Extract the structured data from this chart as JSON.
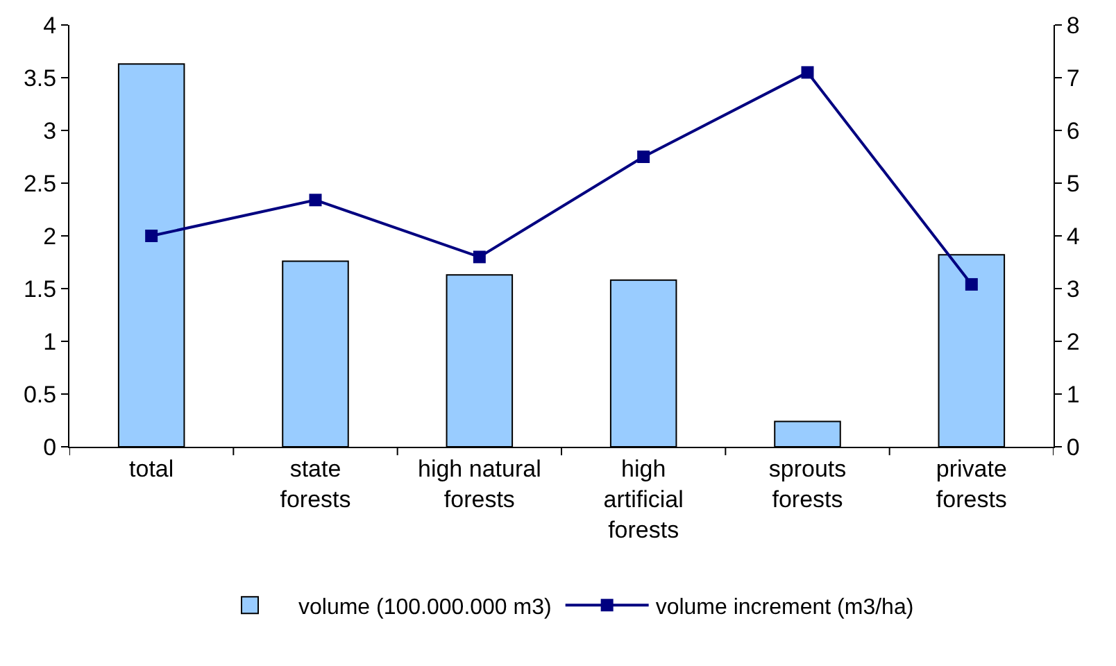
{
  "chart_data": {
    "type": "bar",
    "categories": [
      "total",
      "state\nforests",
      "high natural\nforests",
      "high\nartificial\nforests",
      "sprouts\nforests",
      "private\nforests"
    ],
    "series": [
      {
        "name": "volume (100.000.000 m3)",
        "color": "#99ccff",
        "values": [
          3.63,
          1.76,
          1.63,
          1.58,
          0.24,
          1.82
        ]
      },
      {
        "name": "volume increment (m3/ha)",
        "type": "line",
        "axis": "y2",
        "color": "#000080",
        "marker": "square",
        "line_style": "solid",
        "values": [
          4.0,
          4.68,
          3.6,
          5.5,
          7.1,
          3.08
        ]
      }
    ],
    "ylim": [
      0,
      4
    ],
    "yticks": [
      0,
      0.5,
      1,
      1.5,
      2,
      2.5,
      3,
      3.5,
      4
    ],
    "y2lim": [
      0,
      8
    ],
    "y2ticks": [
      0,
      1,
      2,
      3,
      4,
      5,
      6,
      7,
      8
    ],
    "grid": false,
    "legend": "bottom"
  }
}
